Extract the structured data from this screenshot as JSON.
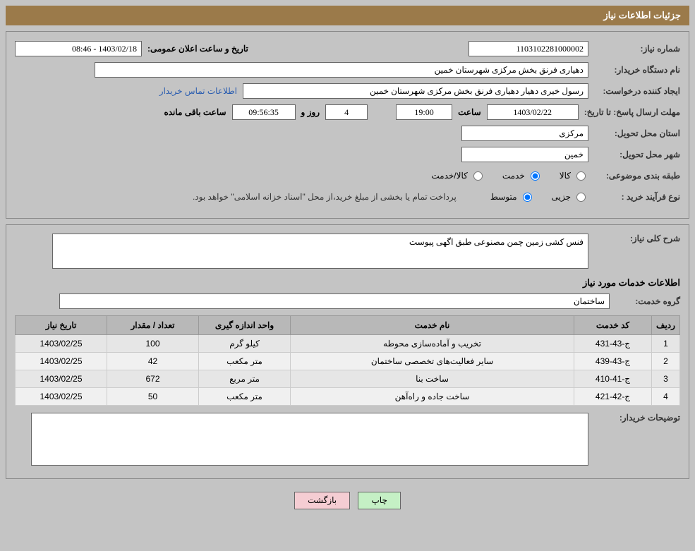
{
  "header": {
    "title": "جزئیات اطلاعات نیاز"
  },
  "info": {
    "need_no_label": "شماره نیاز:",
    "need_no": "1103102281000002",
    "announce_label": "تاریخ و ساعت اعلان عمومی:",
    "announce_val": "1403/02/18 - 08:46",
    "org_label": "نام دستگاه خریدار:",
    "org": "دهیاری فرنق بخش مرکزی شهرستان خمین",
    "requester_label": "ایجاد کننده درخواست:",
    "requester": "رسول خیری دهیار دهیاری فرنق بخش مرکزی شهرستان خمین",
    "contact_link": "اطلاعات تماس خریدار",
    "deadline_label": "مهلت ارسال پاسخ:  تا تاریخ:",
    "deadline_date": "1403/02/22",
    "hour_label": "ساعت",
    "deadline_hour": "19:00",
    "days": "4",
    "days_label": "روز و",
    "remain_time": "09:56:35",
    "remain_label": "ساعت باقی مانده",
    "province_label": "استان محل تحویل:",
    "province": "مرکزی",
    "city_label": "شهر محل تحویل:",
    "city": "خمین",
    "category_label": "طبقه بندی موضوعی:",
    "cat_goods": "کالا",
    "cat_service": "خدمت",
    "cat_goods_service": "کالا/خدمت",
    "process_label": "نوع فرآیند خرید :",
    "proc_partial": "جزیی",
    "proc_medium": "متوسط",
    "payment_note": "پرداخت تمام یا بخشی از مبلغ خرید،از محل \"اسناد خزانه اسلامی\" خواهد بود."
  },
  "desc": {
    "label": "شرح کلی نیاز:",
    "text": "فنس کشی زمین چمن مصنوعی طبق اگهی پیوست"
  },
  "services_title": "اطلاعات خدمات مورد نیاز",
  "group": {
    "label": "گروه خدمت:",
    "value": "ساختمان"
  },
  "table": {
    "h_row": "ردیف",
    "h_code": "کد خدمت",
    "h_name": "نام خدمت",
    "h_unit": "واحد اندازه گیری",
    "h_qty": "تعداد / مقدار",
    "h_date": "تاریخ نیاز",
    "rows": [
      {
        "r": "1",
        "code": "ج-43-431",
        "name": "تخریب و آماده‌سازی محوطه",
        "unit": "کیلو گرم",
        "qty": "100",
        "date": "1403/02/25"
      },
      {
        "r": "2",
        "code": "ج-43-439",
        "name": "سایر فعالیت‌های تخصصی ساختمان",
        "unit": "متر مکعب",
        "qty": "42",
        "date": "1403/02/25"
      },
      {
        "r": "3",
        "code": "ج-41-410",
        "name": "ساخت بنا",
        "unit": "متر مربع",
        "qty": "672",
        "date": "1403/02/25"
      },
      {
        "r": "4",
        "code": "ج-42-421",
        "name": "ساخت جاده و راه‌آهن",
        "unit": "متر مکعب",
        "qty": "50",
        "date": "1403/02/25"
      }
    ]
  },
  "buyer_notes_label": "توضیحات خریدار:",
  "buttons": {
    "print": "چاپ",
    "back": "بازگشت"
  }
}
